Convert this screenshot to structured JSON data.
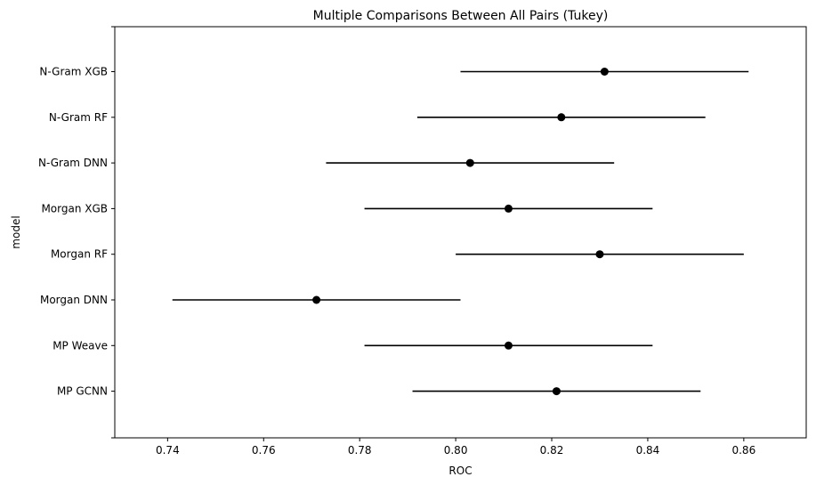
{
  "chart_data": {
    "type": "scatter",
    "title": "Multiple Comparisons Between All Pairs (Tukey)",
    "xlabel": "ROC",
    "ylabel": "model",
    "xlim": [
      0.729,
      0.873
    ],
    "x_ticks": [
      0.74,
      0.76,
      0.78,
      0.8,
      0.82,
      0.84,
      0.86
    ],
    "x_tick_labels": [
      "0.74",
      "0.76",
      "0.78",
      "0.80",
      "0.82",
      "0.84",
      "0.86"
    ],
    "grid": false,
    "legend": "none",
    "categories": [
      "N-Gram XGB",
      "N-Gram RF",
      "N-Gram DNN",
      "Morgan XGB",
      "Morgan RF",
      "Morgan DNN",
      "MP Weave",
      "MP GCNN"
    ],
    "series": [
      {
        "values": [
          0.831,
          0.822,
          0.803,
          0.811,
          0.83,
          0.771,
          0.811,
          0.821
        ],
        "lower": [
          0.801,
          0.792,
          0.773,
          0.781,
          0.8,
          0.741,
          0.781,
          0.791
        ],
        "upper": [
          0.861,
          0.852,
          0.833,
          0.841,
          0.86,
          0.801,
          0.841,
          0.851
        ]
      }
    ],
    "colors": {
      "marker": "#000000",
      "line": "#000000",
      "axes": "#000000"
    }
  }
}
